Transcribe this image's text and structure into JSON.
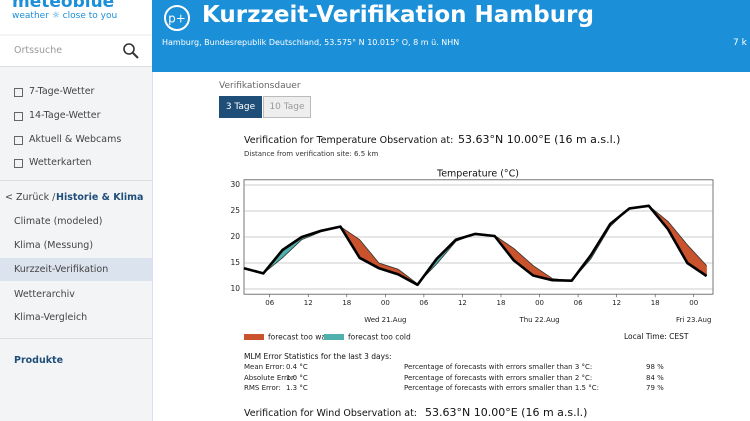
{
  "header": {
    "logo": "meteoblue",
    "tagline": "weather ☼ close to you",
    "title": "Kurzzeit-Verifikation Hamburg",
    "location": "Hamburg, Bundesrepublik Deutschland, 53.575° N 10.015° O, 8 m ü. NHN",
    "right_text": "7 k"
  },
  "sidebar": {
    "search_placeholder": "Ortssuche",
    "nav": [
      "7-Tage-Wetter",
      "14-Tage-Wetter",
      "Aktuell & Webcams",
      "Wetterkarten"
    ],
    "back": "< Zurück /",
    "section": "Historie & Klima",
    "sub": [
      "Climate (modeled)",
      "Klima (Messung)",
      "Kurzzeit-Verifikation",
      "Wetterarchiv",
      "Klima-Vergleich"
    ],
    "products": "Produkte"
  },
  "main": {
    "duration_label": "Verifikationsdauer",
    "tabs": [
      "3 Tage",
      "10 Tage"
    ],
    "temp_heading": "Verification for Temperature Observation at:",
    "temp_coords": "53.63°N 10.00°E (16 m a.s.l.)",
    "distance": "Distance from verification site: 6.5 km",
    "stats_title": "MLM Error Statistics for the last 3 days:",
    "stats": [
      [
        "Mean Error:",
        "0.4 °C",
        "Percentage of forecasts with errors smaller than 3 °C:",
        "98 %"
      ],
      [
        "Absolute Error:",
        "1.0 °C",
        "Percentage of forecasts with errors smaller than 2 °C:",
        "84 %"
      ],
      [
        "RMS Error:",
        "1.3 °C",
        "Percentage of forecasts with errors smaller than 1.5 °C:",
        "79 %"
      ]
    ],
    "wind_heading": "Verification for Wind Observation at:",
    "wind_coords": "53.63°N 10.00°E (16 m a.s.l.)"
  },
  "chart_data": {
    "type": "line",
    "title": "Temperature (°C)",
    "x": [
      2,
      5,
      8,
      11,
      14,
      17,
      20,
      23,
      26,
      29,
      32,
      35,
      38,
      41,
      44,
      47,
      50,
      53,
      56,
      59,
      62,
      65,
      68,
      71,
      74
    ],
    "xlim": [
      2,
      75
    ],
    "xticks": [
      {
        "value": 6,
        "label": "06"
      },
      {
        "value": 12,
        "label": "12"
      },
      {
        "value": 18,
        "label": "18"
      },
      {
        "value": 24,
        "label": "00"
      },
      {
        "value": 30,
        "label": "06"
      },
      {
        "value": 36,
        "label": "12"
      },
      {
        "value": 42,
        "label": "18"
      },
      {
        "value": 48,
        "label": "00"
      },
      {
        "value": 54,
        "label": "06"
      },
      {
        "value": 60,
        "label": "12"
      },
      {
        "value": 66,
        "label": "18"
      },
      {
        "value": 72,
        "label": "00"
      }
    ],
    "day_labels": [
      {
        "value": 24,
        "label": "Wed 21.Aug"
      },
      {
        "value": 48,
        "label": "Thu 22.Aug"
      },
      {
        "value": 72,
        "label": "Fri 23.Aug"
      }
    ],
    "ylim": [
      9,
      31
    ],
    "yticks": [
      10,
      15,
      20,
      25,
      30
    ],
    "grid": true,
    "series": [
      {
        "color": "#000000",
        "values": [
          14.0,
          13.0,
          17.5,
          20.0,
          21.2,
          22.0,
          16.0,
          14.0,
          12.8,
          10.8,
          15.8,
          19.5,
          20.6,
          20.2,
          15.5,
          12.6,
          11.7,
          11.6,
          16.5,
          22.5,
          25.5,
          26.0,
          21.5,
          15.0,
          12.5
        ]
      },
      {
        "color": "#333333",
        "values": [
          14.0,
          13.0,
          16.0,
          19.5,
          21.0,
          22.0,
          19.5,
          15.0,
          13.8,
          11.0,
          14.8,
          19.2,
          20.6,
          20.3,
          17.8,
          14.5,
          12.0,
          11.6,
          15.8,
          22.0,
          25.6,
          26.0,
          23.0,
          18.5,
          14.5
        ]
      }
    ],
    "legend": [
      {
        "label": "forecast too warm",
        "color": "#c9532c"
      },
      {
        "label": "forecast too cold",
        "color": "#4fb0ad"
      }
    ],
    "local_time": "Local Time: CEST"
  }
}
